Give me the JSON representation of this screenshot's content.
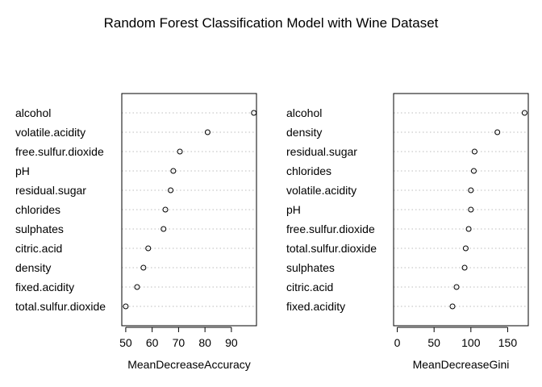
{
  "chart_data": {
    "title": "Random Forest Classification Model with Wine Dataset",
    "panels": [
      {
        "type": "scatter",
        "xlabel": "MeanDecreaseAccuracy",
        "xlim": [
          48.5,
          99.5
        ],
        "xticks": [
          50,
          60,
          70,
          80,
          90
        ],
        "grid": "horizontal dotted",
        "categories": [
          "alcohol",
          "volatile.acidity",
          "free.sulfur.dioxide",
          "pH",
          "residual.sugar",
          "chlorides",
          "sulphates",
          "citric.acid",
          "density",
          "fixed.acidity",
          "total.sulfur.dioxide"
        ],
        "values": [
          98.5,
          81,
          70.5,
          68,
          67,
          65,
          64.3,
          58.5,
          56.7,
          54.3,
          50
        ]
      },
      {
        "type": "scatter",
        "xlabel": "MeanDecreaseGini",
        "xlim": [
          -5,
          178
        ],
        "xticks": [
          0,
          50,
          100,
          150
        ],
        "grid": "horizontal dotted",
        "categories": [
          "alcohol",
          "density",
          "residual.sugar",
          "chlorides",
          "volatile.acidity",
          "pH",
          "free.sulfur.dioxide",
          "total.sulfur.dioxide",
          "sulphates",
          "citric.acid",
          "fixed.acidity"
        ],
        "values": [
          173,
          136,
          105,
          104,
          100,
          100,
          97,
          93,
          91.5,
          80.5,
          75
        ]
      }
    ]
  }
}
